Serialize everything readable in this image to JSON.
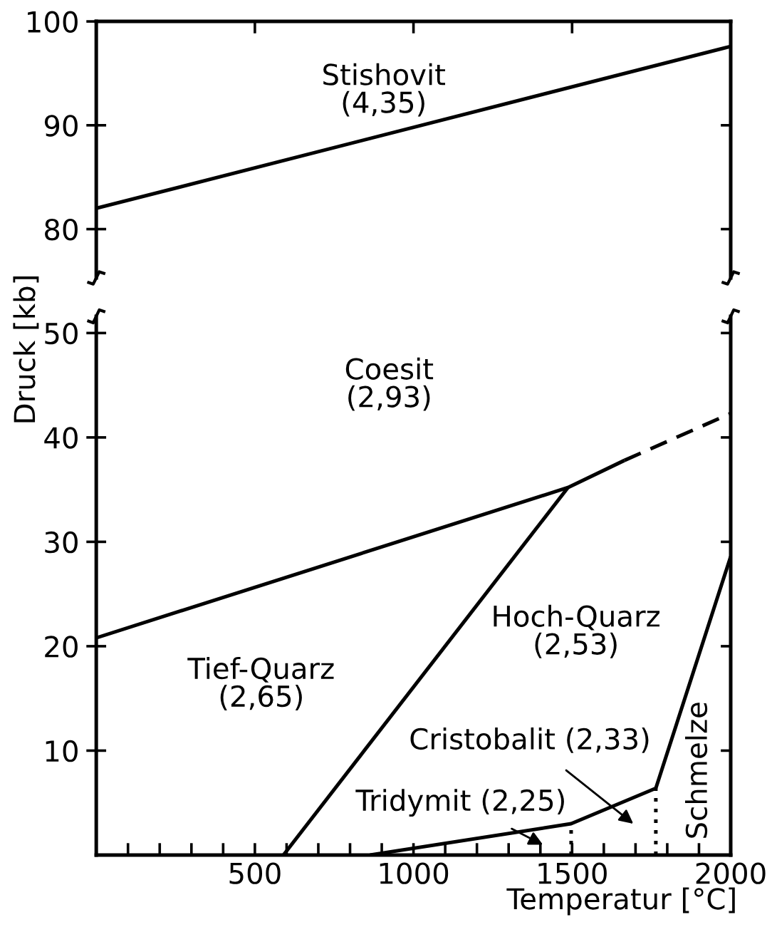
{
  "chart_data": [
    {
      "type": "line",
      "xlim": [
        0,
        2000
      ],
      "ylim": [
        75.3,
        100
      ],
      "xticks": [
        {
          "value": 500,
          "label": null
        },
        {
          "value": 1000,
          "label": null
        },
        {
          "value": 1500,
          "label": null
        }
      ],
      "yticks": [
        80,
        90,
        100
      ],
      "tick_labels": "y",
      "series": [
        {
          "color": "#000000",
          "x": [
            0,
            2000
          ],
          "values": [
            82,
            97.6
          ]
        }
      ],
      "annotations": [
        "Stishovit\n(4,35)"
      ]
    },
    {
      "type": "line",
      "xlim": [
        0,
        2000
      ],
      "ylim": [
        0,
        51.6
      ],
      "xlabel": "Temperatur [°C]",
      "ylabel": "Druck [kb]",
      "xticks": [
        {
          "value": 100,
          "label": null
        },
        {
          "value": 200,
          "label": null
        },
        {
          "value": 300,
          "label": null
        },
        {
          "value": 400,
          "label": null
        },
        500,
        {
          "value": 600,
          "label": null
        },
        {
          "value": 700,
          "label": null
        },
        {
          "value": 800,
          "label": null
        },
        {
          "value": 900,
          "label": null
        },
        1000,
        {
          "value": 1100,
          "label": null
        },
        {
          "value": 1200,
          "label": null
        },
        {
          "value": 1300,
          "label": null
        },
        {
          "value": 1400,
          "label": null
        },
        1500,
        {
          "value": 1600,
          "label": null
        },
        {
          "value": 1700,
          "label": null
        },
        {
          "value": 1800,
          "label": null
        },
        {
          "value": 1900,
          "label": null
        },
        2000
      ],
      "yticks": [
        10,
        20,
        30,
        40,
        50
      ],
      "series": [
        {
          "color": "#000000",
          "line_style": "solid",
          "x": [
            0,
            1487,
            1665
          ],
          "values": [
            20.8,
            35.2,
            37.8
          ]
        },
        {
          "color": "#000000",
          "line_style": "dashed",
          "x": [
            1665,
            2000
          ],
          "values": [
            37.8,
            42.3
          ]
        },
        {
          "color": "#000000",
          "line_style": "solid",
          "x": [
            590,
            1487
          ],
          "values": [
            0,
            35.2
          ]
        },
        {
          "color": "#000000",
          "line_style": "solid",
          "x": [
            863,
            1497,
            1764,
            2000
          ],
          "values": [
            0,
            3.0,
            6.4,
            28.6
          ]
        },
        {
          "color": "#000000",
          "line_style": "dotted",
          "x": [
            1497,
            1497
          ],
          "values": [
            0,
            3.0
          ]
        },
        {
          "color": "#000000",
          "line_style": "dotted",
          "x": [
            1764,
            1764
          ],
          "values": [
            0,
            6.4
          ]
        }
      ],
      "annotations": [
        "Coesit\n(2,93)",
        "Tief-Quarz\n(2,65)",
        "Hoch-Quarz\n(2,53)",
        "Schmelze",
        "Tridymit (2,25)",
        "Cristobalit (2,33)"
      ]
    }
  ]
}
